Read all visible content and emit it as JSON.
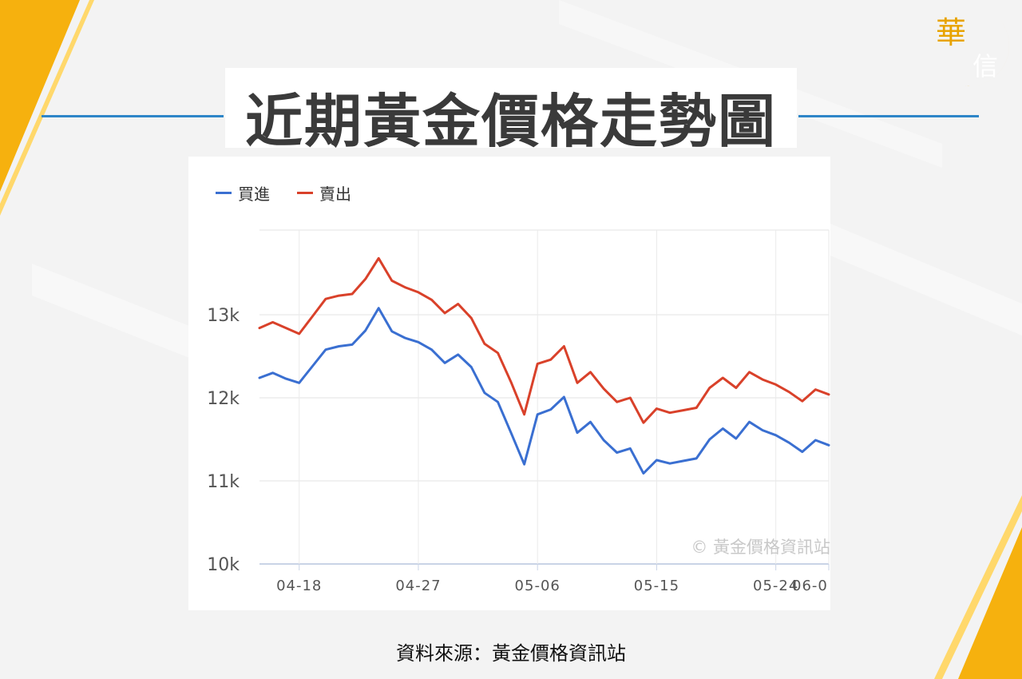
{
  "page": {
    "title": "近期黃金價格走勢圖",
    "logo_text": [
      "華",
      "信"
    ],
    "source_text": "資料來源：黃金價格資訊站",
    "colors": {
      "accent_line": "#2e86c8",
      "gold": "#f6b10e",
      "title_text": "#3a3a3a"
    }
  },
  "chart_data": {
    "type": "line",
    "title": "",
    "xlabel": "",
    "ylabel": "",
    "watermark": "© 黃金價格資訊站",
    "x_ticks": [
      "04-18",
      "04-27",
      "05-06",
      "05-15",
      "05-24",
      "06-0"
    ],
    "y_ticks": [
      "10k",
      "11k",
      "12k",
      "13k"
    ],
    "ylim": [
      10000,
      14000
    ],
    "grid": true,
    "legend": "top-left",
    "series": [
      {
        "name": "買進",
        "color": "#3a6fd1",
        "values": [
          12240,
          12300,
          12230,
          12180,
          12380,
          12580,
          12620,
          12640,
          12810,
          13080,
          12800,
          12720,
          12670,
          12580,
          12420,
          12520,
          12370,
          12060,
          11950,
          11580,
          11200,
          11800,
          11860,
          12010,
          11580,
          11710,
          11490,
          11340,
          11390,
          11090,
          11250,
          11210,
          11240,
          11270,
          11500,
          11630,
          11510,
          11710,
          11610,
          11550,
          11460,
          11350,
          11490,
          11430
        ]
      },
      {
        "name": "賣出",
        "color": "#d9412a",
        "values": [
          12840,
          12910,
          12840,
          12770,
          12980,
          13190,
          13230,
          13250,
          13430,
          13680,
          13410,
          13330,
          13270,
          13180,
          13020,
          13130,
          12960,
          12650,
          12540,
          12190,
          11800,
          12410,
          12460,
          12620,
          12180,
          12310,
          12110,
          11950,
          12000,
          11700,
          11870,
          11820,
          11850,
          11880,
          12120,
          12240,
          12120,
          12310,
          12220,
          12160,
          12070,
          11960,
          12100,
          12040
        ]
      }
    ]
  }
}
